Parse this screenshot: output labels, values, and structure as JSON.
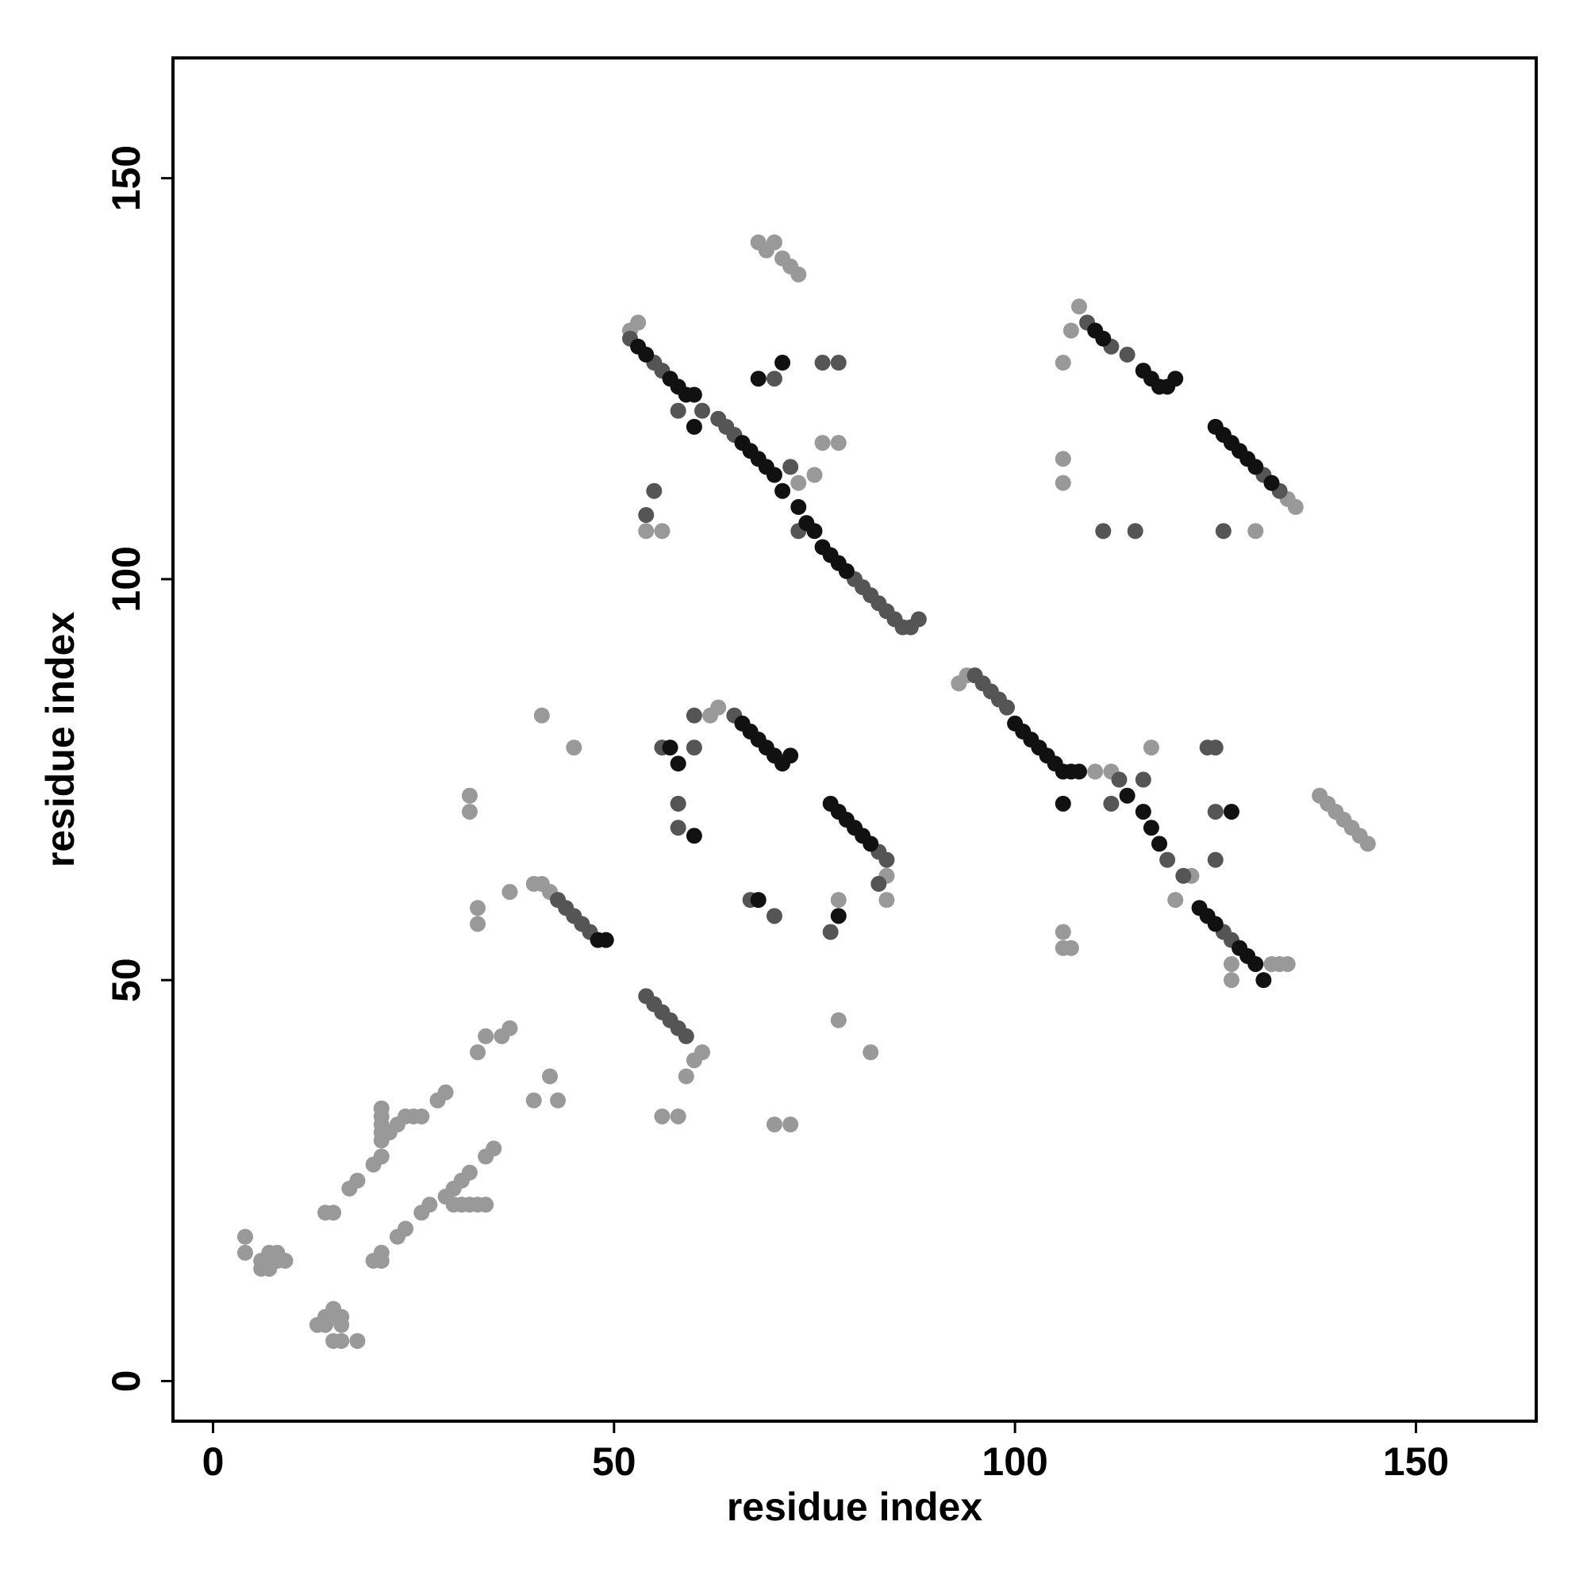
{
  "chart_data": {
    "type": "scatter",
    "x_label": "residue index",
    "y_label": "residue index",
    "xlim": [
      -5,
      165
    ],
    "ylim": [
      -5,
      165
    ],
    "xticks": [
      0,
      50,
      100,
      150
    ],
    "yticks": [
      0,
      50,
      100,
      150
    ],
    "grid": false,
    "series": [
      {
        "color": "#999999",
        "x": [
          4,
          4,
          6,
          6,
          7,
          7,
          8,
          8,
          9,
          13,
          14,
          14,
          15,
          15,
          16,
          16,
          15,
          16,
          18,
          14,
          15,
          17,
          18,
          20,
          21,
          21,
          21,
          21,
          21,
          21,
          22,
          23,
          24,
          25,
          26,
          28,
          29,
          20,
          21,
          21,
          23,
          24,
          26,
          27,
          29,
          30,
          30,
          31,
          31,
          32,
          32,
          33,
          34,
          35,
          34,
          33,
          34,
          36,
          37,
          32,
          32,
          33,
          33,
          37,
          40,
          42,
          43,
          41,
          45,
          40,
          41,
          42,
          52,
          53,
          60,
          61,
          59,
          56,
          58,
          68,
          69,
          70,
          71,
          72,
          73,
          76,
          78,
          73,
          75,
          54,
          56,
          63,
          62,
          84,
          84,
          78,
          78,
          82,
          70,
          72,
          107,
          108,
          106,
          106,
          106,
          135,
          134,
          130,
          138,
          139,
          140,
          141,
          142,
          143,
          144,
          132,
          133,
          134,
          127,
          127,
          106,
          106,
          107,
          110,
          112,
          117,
          122,
          120,
          93,
          94
        ],
        "values": [
          16,
          18,
          15,
          14,
          16,
          14,
          15,
          16,
          15,
          7,
          7,
          8,
          8,
          9,
          7,
          8,
          5,
          5,
          5,
          21,
          21,
          24,
          25,
          27,
          28,
          30,
          31,
          32,
          33,
          34,
          31,
          32,
          33,
          33,
          33,
          35,
          36,
          15,
          15,
          16,
          18,
          19,
          21,
          22,
          23,
          22,
          24,
          22,
          25,
          22,
          26,
          22,
          22,
          29,
          28,
          41,
          43,
          43,
          44,
          71,
          73,
          57,
          59,
          61,
          35,
          38,
          35,
          83,
          79,
          62,
          62,
          61,
          131,
          132,
          40,
          41,
          38,
          33,
          33,
          142,
          141,
          142,
          140,
          139,
          138,
          117,
          117,
          112,
          113,
          106,
          106,
          84,
          83,
          63,
          60,
          60,
          45,
          41,
          32,
          32,
          131,
          134,
          127,
          115,
          112,
          109,
          110,
          106,
          73,
          72,
          71,
          70,
          69,
          68,
          67,
          52,
          52,
          52,
          52,
          50,
          56,
          54,
          54,
          76,
          76,
          79,
          63,
          60,
          87,
          88
        ]
      },
      {
        "color": "#555555",
        "x": [
          43,
          44,
          45,
          46,
          47,
          54,
          55,
          56,
          57,
          58,
          59,
          52,
          55,
          56,
          58,
          61,
          63,
          64,
          65,
          70,
          76,
          78,
          55,
          54,
          73,
          72,
          80,
          81,
          82,
          83,
          84,
          85,
          86,
          87,
          88,
          95,
          96,
          97,
          98,
          99,
          56,
          60,
          60,
          65,
          58,
          58,
          67,
          70,
          83,
          84,
          83,
          77,
          109,
          112,
          114,
          126,
          111,
          115,
          133,
          131,
          113,
          116,
          112,
          124,
          125,
          125,
          125,
          119,
          121,
          126,
          127
        ],
        "values": [
          60,
          59,
          58,
          57,
          56,
          48,
          47,
          46,
          45,
          44,
          43,
          130,
          127,
          126,
          121,
          121,
          120,
          119,
          118,
          125,
          127,
          127,
          111,
          108,
          106,
          114,
          100,
          99,
          98,
          97,
          96,
          95,
          94,
          94,
          95,
          88,
          87,
          86,
          85,
          84,
          79,
          79,
          83,
          83,
          72,
          69,
          60,
          58,
          66,
          65,
          62,
          56,
          132,
          129,
          128,
          106,
          106,
          106,
          111,
          113,
          75,
          75,
          72,
          79,
          79,
          71,
          65,
          65,
          63,
          56,
          55
        ]
      },
      {
        "color": "#111111",
        "x": [
          48,
          49,
          53,
          54,
          57,
          58,
          59,
          60,
          60,
          68,
          71,
          66,
          67,
          68,
          69,
          70,
          71,
          73,
          74,
          75,
          76,
          77,
          78,
          79,
          100,
          101,
          102,
          103,
          104,
          105,
          106,
          107,
          108,
          114,
          116,
          117,
          118,
          123,
          124,
          125,
          128,
          129,
          130,
          131,
          106,
          127,
          110,
          111,
          116,
          117,
          118,
          119,
          120,
          125,
          126,
          127,
          128,
          129,
          130,
          132,
          57,
          66,
          67,
          68,
          69,
          70,
          71,
          72,
          58,
          60,
          68,
          78,
          77,
          78,
          79,
          80,
          81,
          82
        ],
        "values": [
          55,
          55,
          129,
          128,
          125,
          124,
          123,
          123,
          119,
          125,
          127,
          117,
          116,
          115,
          114,
          113,
          111,
          109,
          107,
          106,
          104,
          103,
          102,
          101,
          82,
          81,
          80,
          79,
          78,
          77,
          76,
          76,
          76,
          73,
          71,
          69,
          67,
          59,
          58,
          57,
          54,
          53,
          52,
          50,
          72,
          71,
          131,
          130,
          126,
          125,
          124,
          124,
          125,
          119,
          118,
          117,
          116,
          115,
          114,
          112,
          79,
          82,
          81,
          80,
          79,
          78,
          77,
          78,
          77,
          68,
          60,
          58,
          72,
          71,
          70,
          69,
          68,
          67
        ]
      }
    ]
  }
}
